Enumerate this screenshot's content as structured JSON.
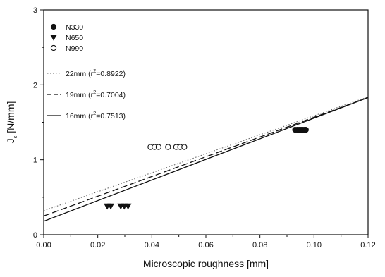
{
  "chart_data": {
    "type": "scatter",
    "xlabel": "Microscopic roughness [mm]",
    "ylabel": {
      "main": "J",
      "sub": "c",
      "unit": " [N/mm]"
    },
    "xlim": [
      0.0,
      0.12
    ],
    "ylim": [
      0,
      3
    ],
    "x_ticks": [
      "0.00",
      "0.02",
      "0.04",
      "0.06",
      "0.08",
      "0.10",
      "0.12"
    ],
    "y_ticks": [
      "0",
      "1",
      "2",
      "3"
    ],
    "grid": false,
    "legend_position": "top-left",
    "series": [
      {
        "name": "N330",
        "marker": "filled-circle",
        "color": "#111111",
        "points": [
          [
            0.093,
            1.4
          ],
          [
            0.0938,
            1.4
          ],
          [
            0.0945,
            1.4
          ],
          [
            0.0952,
            1.4
          ],
          [
            0.0958,
            1.4
          ],
          [
            0.0965,
            1.4
          ],
          [
            0.097,
            1.4
          ]
        ]
      },
      {
        "name": "N650",
        "marker": "filled-triangle-down",
        "color": "#111111",
        "points": [
          [
            0.0235,
            0.38
          ],
          [
            0.0248,
            0.38
          ],
          [
            0.0285,
            0.38
          ],
          [
            0.0298,
            0.38
          ],
          [
            0.0312,
            0.38
          ]
        ]
      },
      {
        "name": "N990",
        "marker": "open-circle",
        "color": "#111111",
        "points": [
          [
            0.0395,
            1.17
          ],
          [
            0.041,
            1.17
          ],
          [
            0.0425,
            1.17
          ],
          [
            0.046,
            1.17
          ],
          [
            0.049,
            1.17
          ],
          [
            0.0505,
            1.17
          ],
          [
            0.052,
            1.17
          ]
        ]
      }
    ],
    "fits": [
      {
        "label_pre": "22mm (r",
        "label_sup": "2",
        "label_post": "=0.8922)",
        "style": "dotted",
        "color": "#666666",
        "x": [
          0.0,
          0.12
        ],
        "y": [
          0.32,
          1.84
        ]
      },
      {
        "label_pre": "19mm (r",
        "label_sup": "2",
        "label_post": "=0.7004)",
        "style": "dashed",
        "color": "#111111",
        "x": [
          0.0,
          0.12
        ],
        "y": [
          0.25,
          1.83
        ]
      },
      {
        "label_pre": "16mm (r",
        "label_sup": "2",
        "label_post": "=0.7513)",
        "style": "solid",
        "color": "#111111",
        "x": [
          0.0,
          0.12
        ],
        "y": [
          0.18,
          1.83
        ]
      }
    ]
  }
}
